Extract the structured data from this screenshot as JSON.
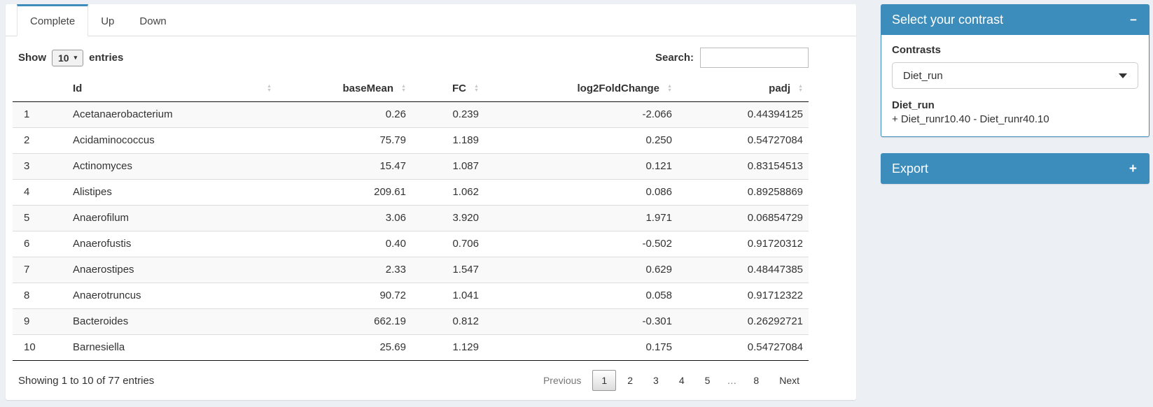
{
  "colors": {
    "accent": "#3c8dbc",
    "page_bg": "#ecf0f5"
  },
  "tabs": [
    {
      "label": "Complete",
      "active": true
    },
    {
      "label": "Up",
      "active": false
    },
    {
      "label": "Down",
      "active": false
    }
  ],
  "table_controls": {
    "show_label": "Show",
    "page_length": "10",
    "length_caret_icon": "▾",
    "entries_label": "entries",
    "search_label": "Search:",
    "search_value": ""
  },
  "table": {
    "columns": [
      {
        "label": "",
        "sortable": false,
        "numeric": false
      },
      {
        "label": "Id",
        "sortable": true,
        "numeric": false
      },
      {
        "label": "baseMean",
        "sortable": true,
        "numeric": true
      },
      {
        "label": "FC",
        "sortable": true,
        "numeric": true
      },
      {
        "label": "log2FoldChange",
        "sortable": true,
        "numeric": true
      },
      {
        "label": "padj",
        "sortable": true,
        "numeric": true
      }
    ],
    "sort_icon_up": "▲",
    "sort_icon_down": "▼",
    "rows": [
      [
        "1",
        "Acetanaerobacterium",
        "0.26",
        "0.239",
        "-2.066",
        "0.44394125"
      ],
      [
        "2",
        "Acidaminococcus",
        "75.79",
        "1.189",
        "0.250",
        "0.54727084"
      ],
      [
        "3",
        "Actinomyces",
        "15.47",
        "1.087",
        "0.121",
        "0.83154513"
      ],
      [
        "4",
        "Alistipes",
        "209.61",
        "1.062",
        "0.086",
        "0.89258869"
      ],
      [
        "5",
        "Anaerofilum",
        "3.06",
        "3.920",
        "1.971",
        "0.06854729"
      ],
      [
        "6",
        "Anaerofustis",
        "0.40",
        "0.706",
        "-0.502",
        "0.91720312"
      ],
      [
        "7",
        "Anaerostipes",
        "2.33",
        "1.547",
        "0.629",
        "0.48447385"
      ],
      [
        "8",
        "Anaerotruncus",
        "90.72",
        "1.041",
        "0.058",
        "0.91712322"
      ],
      [
        "9",
        "Bacteroides",
        "662.19",
        "0.812",
        "-0.301",
        "0.26292721"
      ],
      [
        "10",
        "Barnesiella",
        "25.69",
        "1.129",
        "0.175",
        "0.54727084"
      ]
    ]
  },
  "footer": {
    "info": "Showing 1 to 10 of 77 entries",
    "pagination": {
      "previous_label": "Previous",
      "pages": [
        "1",
        "2",
        "3",
        "4",
        "5",
        "…",
        "8"
      ],
      "current_page": "1",
      "next_label": "Next"
    }
  },
  "contrast_box": {
    "title": "Select your contrast",
    "collapse_icon": "−",
    "contrasts_label": "Contrasts",
    "selected_contrast": "Diet_run",
    "contrast_name": "Diet_run",
    "contrast_formula": "+ Diet_runr10.40 - Diet_runr40.10"
  },
  "export_box": {
    "title": "Export",
    "expand_icon": "+"
  }
}
